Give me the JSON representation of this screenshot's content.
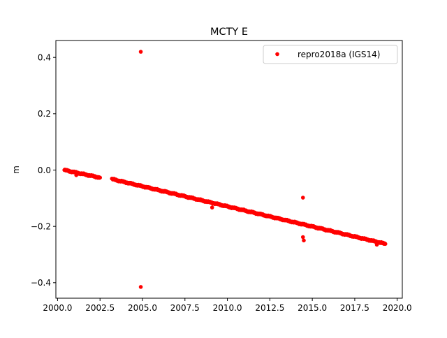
{
  "chart_data": {
    "type": "scatter",
    "title": "MCTY E",
    "xlabel": "",
    "ylabel": "m",
    "xlim": [
      1999.9,
      2020.3
    ],
    "ylim": [
      -0.455,
      0.46
    ],
    "x_ticks": [
      2000.0,
      2002.5,
      2005.0,
      2007.5,
      2010.0,
      2012.5,
      2015.0,
      2017.5,
      2020.0
    ],
    "x_tick_labels": [
      "2000.0",
      "2002.5",
      "2005.0",
      "2007.5",
      "2010.0",
      "2012.5",
      "2015.0",
      "2017.5",
      "2020.0"
    ],
    "y_ticks": [
      -0.4,
      -0.2,
      0.0,
      0.2,
      0.4
    ],
    "y_tick_labels": [
      "−0.4",
      "−0.2",
      "0.0",
      "0.2",
      "0.4"
    ],
    "grid": false,
    "legend_position": "top-right",
    "series": [
      {
        "name": "repro2018a (IGS14)",
        "color": "#ff0000",
        "marker": "circle",
        "segments": [
          {
            "x_start": 2000.4,
            "x_end": 2002.5,
            "y_start": 0.0,
            "y_end": -0.027,
            "step": 0.03
          },
          {
            "x_start": 2003.2,
            "x_end": 2019.3,
            "y_start": -0.032,
            "y_end": -0.262,
            "step": 0.03
          }
        ],
        "outliers": [
          {
            "x": 2004.9,
            "y": 0.42
          },
          {
            "x": 2004.9,
            "y": -0.415
          },
          {
            "x": 2014.45,
            "y": -0.098
          },
          {
            "x": 2014.45,
            "y": -0.238
          },
          {
            "x": 2014.5,
            "y": -0.25
          },
          {
            "x": 2001.1,
            "y": -0.018
          },
          {
            "x": 2009.1,
            "y": -0.133
          },
          {
            "x": 2018.8,
            "y": -0.265
          }
        ]
      }
    ]
  }
}
